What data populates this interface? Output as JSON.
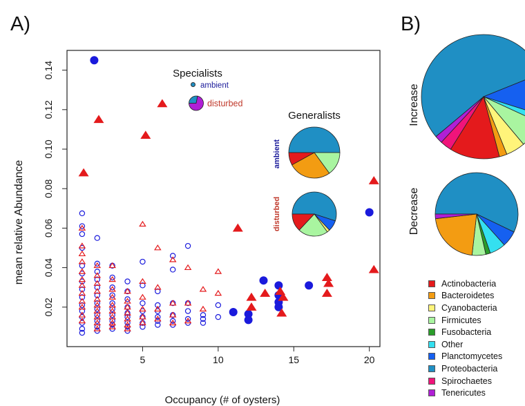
{
  "panel_a": {
    "letter": "A)",
    "specialists": {
      "title": "Specialists",
      "ambient": "ambient",
      "disturbed": "disturbed"
    },
    "generalists": {
      "title": "Generalists",
      "ambient": "ambient",
      "disturbed": "disturbed"
    }
  },
  "panel_b": {
    "letter": "B)",
    "increase_label": "Increase",
    "decrease_label": "Decrease"
  },
  "colors": {
    "ambient": "#1a1adc",
    "disturbed": "#e41a1c",
    "ambient_text": "#1a1a9a",
    "disturbed_text": "#c0392b"
  },
  "legend": [
    {
      "label": "Actinobacteria",
      "color": "#e41a1c"
    },
    {
      "label": "Bacteroidetes",
      "color": "#f39c12"
    },
    {
      "label": "Cyanobacteria",
      "color": "#fff47a"
    },
    {
      "label": "Firmicutes",
      "color": "#a9f5a0"
    },
    {
      "label": "Fusobacteria",
      "color": "#2a9d2a"
    },
    {
      "label": "Other",
      "color": "#34e0f0"
    },
    {
      "label": "Planctomycetes",
      "color": "#1560f0"
    },
    {
      "label": "Proteobacteria",
      "color": "#1f8fc4"
    },
    {
      "label": "Spirochaetes",
      "color": "#f0147a"
    },
    {
      "label": "Tenericutes",
      "color": "#b01fd6"
    }
  ],
  "chart_data": [
    {
      "type": "scatter",
      "xlabel": "Occupancy (# of oysters)",
      "ylabel": "mean relative Abundance",
      "xlim": [
        0,
        20.7
      ],
      "ylim": [
        0,
        0.15
      ],
      "xticks": [
        5,
        10,
        15,
        20
      ],
      "yticks": [
        0.02,
        0.04,
        0.06,
        0.08,
        0.1,
        0.12,
        0.14
      ],
      "ytick_labels": [
        "0.02",
        "0.04",
        "0.06",
        "0.08",
        "0.10",
        "0.12",
        "0.14"
      ],
      "series": [
        {
          "marker": "open-circle",
          "color": "#1a1adc",
          "x": [
            1,
            1,
            1,
            1,
            1,
            1,
            1,
            1,
            1,
            1,
            1,
            1,
            1,
            1,
            1,
            2,
            2,
            2,
            2,
            2,
            2,
            2,
            2,
            2,
            2,
            2,
            2,
            3,
            3,
            3,
            3,
            3,
            3,
            3,
            3,
            3,
            3,
            4,
            4,
            4,
            4,
            4,
            4,
            4,
            4,
            4,
            5,
            5,
            5,
            5,
            5,
            5,
            5,
            6,
            6,
            6,
            6,
            6,
            6,
            7,
            7,
            7,
            7,
            7,
            7,
            8,
            8,
            8,
            8,
            8,
            9,
            9,
            9,
            10,
            10
          ],
          "y": [
            0.0675,
            0.061,
            0.057,
            0.05,
            0.041,
            0.037,
            0.033,
            0.029,
            0.025,
            0.021,
            0.018,
            0.015,
            0.012,
            0.009,
            0.007,
            0.055,
            0.042,
            0.038,
            0.034,
            0.03,
            0.026,
            0.022,
            0.019,
            0.016,
            0.013,
            0.01,
            0.008,
            0.041,
            0.035,
            0.03,
            0.026,
            0.022,
            0.019,
            0.016,
            0.013,
            0.011,
            0.009,
            0.033,
            0.028,
            0.024,
            0.02,
            0.017,
            0.015,
            0.012,
            0.01,
            0.008,
            0.043,
            0.031,
            0.022,
            0.018,
            0.015,
            0.012,
            0.01,
            0.028,
            0.021,
            0.018,
            0.015,
            0.013,
            0.011,
            0.046,
            0.039,
            0.022,
            0.016,
            0.013,
            0.011,
            0.051,
            0.022,
            0.018,
            0.014,
            0.012,
            0.016,
            0.014,
            0.012,
            0.021,
            0.015
          ]
        },
        {
          "marker": "open-triangle",
          "color": "#e41a1c",
          "x": [
            1,
            1,
            1,
            1,
            1,
            1,
            1,
            1,
            1,
            1,
            1,
            1,
            2,
            2,
            2,
            2,
            2,
            2,
            2,
            2,
            2,
            2,
            3,
            3,
            3,
            3,
            3,
            3,
            3,
            3,
            3,
            4,
            4,
            4,
            4,
            4,
            4,
            4,
            5,
            5,
            5,
            5,
            5,
            5,
            6,
            6,
            6,
            6,
            7,
            7,
            7,
            7,
            8,
            8,
            8,
            9,
            9,
            10,
            10
          ],
          "y": [
            0.06,
            0.051,
            0.047,
            0.043,
            0.038,
            0.034,
            0.031,
            0.027,
            0.023,
            0.02,
            0.016,
            0.013,
            0.041,
            0.036,
            0.032,
            0.028,
            0.024,
            0.021,
            0.018,
            0.015,
            0.012,
            0.009,
            0.041,
            0.034,
            0.029,
            0.025,
            0.021,
            0.018,
            0.015,
            0.012,
            0.01,
            0.028,
            0.023,
            0.02,
            0.017,
            0.014,
            0.011,
            0.009,
            0.062,
            0.033,
            0.025,
            0.019,
            0.015,
            0.012,
            0.05,
            0.03,
            0.019,
            0.014,
            0.044,
            0.022,
            0.016,
            0.012,
            0.04,
            0.022,
            0.013,
            0.029,
            0.019,
            0.038,
            0.027
          ]
        },
        {
          "marker": "filled-circle",
          "color": "#1a1adc",
          "x": [
            1.8,
            11,
            12,
            12,
            13,
            14,
            14,
            14,
            14,
            16,
            20
          ],
          "y": [
            0.145,
            0.0175,
            0.0165,
            0.0135,
            0.0335,
            0.031,
            0.026,
            0.0225,
            0.02,
            0.031,
            0.068
          ]
        },
        {
          "marker": "filled-triangle",
          "color": "#e41a1c",
          "x": [
            1.1,
            2.1,
            5.2,
            6.3,
            11.3,
            12.2,
            12.2,
            13.1,
            14.1,
            14.3,
            14.2,
            17.2,
            17.3,
            17.2,
            20.3,
            20.3
          ],
          "y": [
            0.088,
            0.115,
            0.107,
            0.123,
            0.06,
            0.025,
            0.02,
            0.027,
            0.028,
            0.025,
            0.017,
            0.035,
            0.032,
            0.027,
            0.084,
            0.039
          ]
        }
      ]
    },
    {
      "type": "pie",
      "chart": "specialists-disturbed",
      "slices": [
        {
          "category": "Proteobacteria",
          "value": 28
        },
        {
          "category": "Tenericutes",
          "value": 72
        }
      ]
    },
    {
      "type": "pie",
      "chart": "generalists-ambient",
      "slices": [
        {
          "category": "Proteobacteria",
          "value": 50
        },
        {
          "category": "Firmicutes",
          "value": 15
        },
        {
          "category": "Bacteroidetes",
          "value": 27
        },
        {
          "category": "Actinobacteria",
          "value": 8
        }
      ]
    },
    {
      "type": "pie",
      "chart": "generalists-disturbed",
      "slices": [
        {
          "category": "Proteobacteria",
          "value": 55
        },
        {
          "category": "Planctomycetes",
          "value": 8
        },
        {
          "category": "Cyanobacteria",
          "value": 2
        },
        {
          "category": "Firmicutes",
          "value": 22
        },
        {
          "category": "Actinobacteria",
          "value": 13
        }
      ]
    },
    {
      "type": "pie",
      "chart": "increase",
      "slices": [
        {
          "category": "Proteobacteria",
          "value": 55
        },
        {
          "category": "Planctomycetes",
          "value": 11
        },
        {
          "category": "Other",
          "value": 2
        },
        {
          "category": "Firmicutes",
          "value": 7
        },
        {
          "category": "Cyanobacteria",
          "value": 5
        },
        {
          "category": "Bacteroidetes",
          "value": 2
        },
        {
          "category": "Actinobacteria",
          "value": 13
        },
        {
          "category": "Spirochaetes",
          "value": 3
        },
        {
          "category": "Tenericutes",
          "value": 2
        }
      ]
    },
    {
      "type": "pie",
      "chart": "decrease",
      "slices": [
        {
          "category": "Proteobacteria",
          "value": 64
        },
        {
          "category": "Planctomycetes",
          "value": 7
        },
        {
          "category": "Other",
          "value": 7
        },
        {
          "category": "Fusobacteria",
          "value": 2
        },
        {
          "category": "Firmicutes",
          "value": 6
        },
        {
          "category": "Bacteroidetes",
          "value": 24
        },
        {
          "category": "Tenericutes",
          "value": 2
        }
      ]
    }
  ]
}
